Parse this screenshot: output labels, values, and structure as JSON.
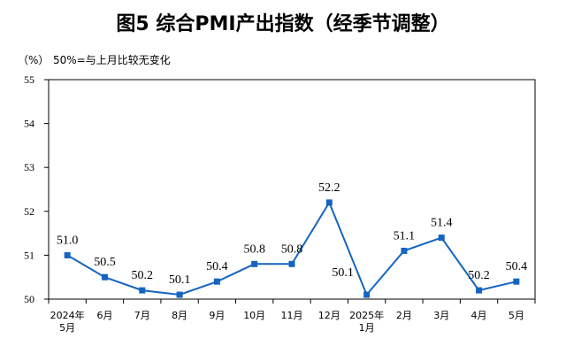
{
  "chart_data": {
    "type": "line",
    "title": "图5  综合PMI产出指数（经季节调整）",
    "unit_label": "（%）",
    "note": "50%=与上月比较无变化",
    "categories": [
      "2024年\n5月",
      "6月",
      "7月",
      "8月",
      "9月",
      "10月",
      "11月",
      "12月",
      "2025年\n1月",
      "2月",
      "3月",
      "4月",
      "5月"
    ],
    "series": [
      {
        "values": [
          51.0,
          50.5,
          50.2,
          50.1,
          50.4,
          50.8,
          50.8,
          52.2,
          50.1,
          51.1,
          51.4,
          50.2,
          50.4
        ],
        "labels": [
          "51.0",
          "50.5",
          "50.2",
          "50.1",
          "50.4",
          "50.8",
          "50.8",
          "52.2",
          "50.1",
          "51.1",
          "51.4",
          "50.2",
          "50.4"
        ]
      }
    ],
    "ylim": [
      50,
      55
    ],
    "yticks": [
      "50",
      "51",
      "52",
      "53",
      "54",
      "55"
    ],
    "grid": false,
    "marker": "square",
    "color": "#1565c0"
  }
}
